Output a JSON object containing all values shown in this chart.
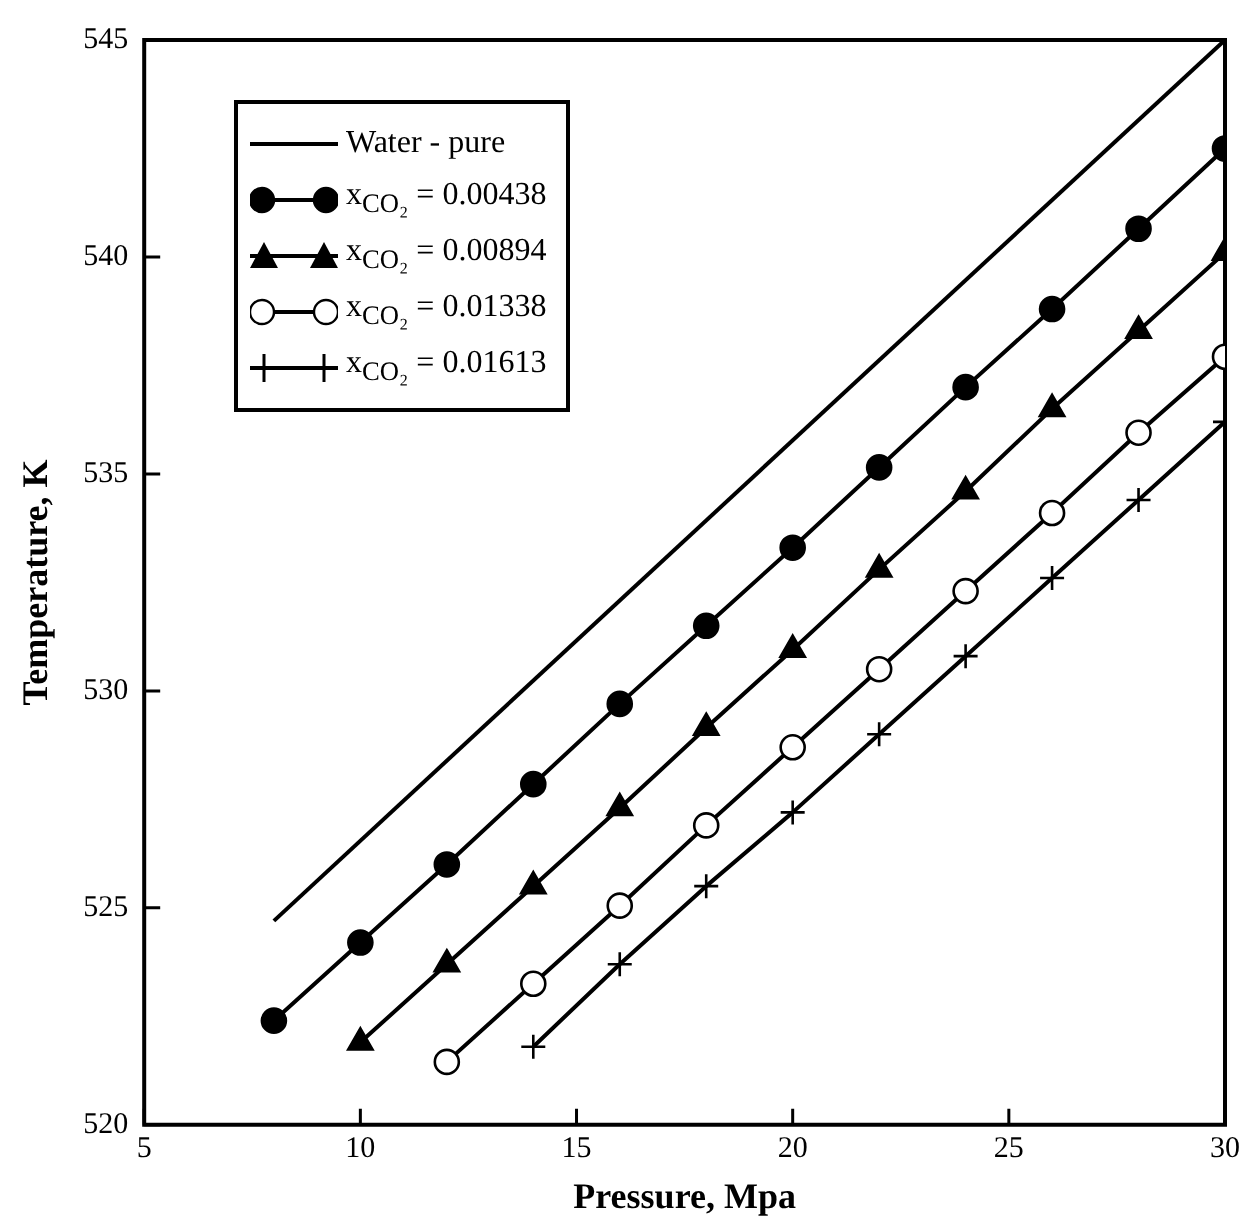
{
  "chart_data": {
    "type": "line",
    "xlabel": "Pressure, Mpa",
    "ylabel": "Temperature, K",
    "xlim": [
      5,
      30
    ],
    "xticks": [
      5,
      10,
      15,
      20,
      25,
      30
    ],
    "ylim": [
      520,
      545
    ],
    "yticks": [
      520,
      525,
      530,
      535,
      540,
      545
    ],
    "grid": false,
    "legend": "top left",
    "line_style": "solid",
    "series": [
      {
        "name": "Water - pure",
        "color": "#000000",
        "marker": "none",
        "x": [
          8,
          30
        ],
        "values": [
          524.7,
          545
        ]
      },
      {
        "name": "x$_{CO₂}$ = 0.00438",
        "color": "#000000",
        "marker": "circle",
        "x": [
          8,
          10,
          12,
          14,
          16,
          18,
          20,
          22,
          24,
          26,
          28,
          30
        ],
        "values": [
          522.4,
          524.2,
          526.0,
          527.85,
          529.7,
          531.5,
          533.3,
          535.15,
          537.0,
          538.8,
          540.65,
          542.5
        ]
      },
      {
        "name": "x$_{CO₂}$ = 0.00894",
        "color": "#000000",
        "marker": "triangle",
        "x": [
          10,
          12,
          14,
          16,
          18,
          20,
          22,
          24,
          26,
          28,
          30
        ],
        "values": [
          521.9,
          523.7,
          525.5,
          527.3,
          529.15,
          530.95,
          532.8,
          534.6,
          536.5,
          538.3,
          540.1
        ]
      },
      {
        "name": "x$_{CO₂}$ = 0.01338",
        "color": "#000000",
        "marker": "circle-open",
        "x": [
          12,
          14,
          16,
          18,
          20,
          22,
          24,
          26,
          28,
          30
        ],
        "values": [
          521.45,
          523.25,
          525.05,
          526.9,
          528.7,
          530.5,
          532.3,
          534.1,
          535.95,
          537.7
        ]
      },
      {
        "name": "x$_{CO₂}$ = 0.01613",
        "color": "#000000",
        "marker": "cross",
        "x": [
          14,
          16,
          18,
          20,
          22,
          24,
          26,
          28,
          30
        ],
        "values": [
          521.8,
          523.7,
          525.5,
          527.2,
          529.0,
          530.8,
          532.6,
          534.4,
          536.2
        ]
      }
    ]
  }
}
